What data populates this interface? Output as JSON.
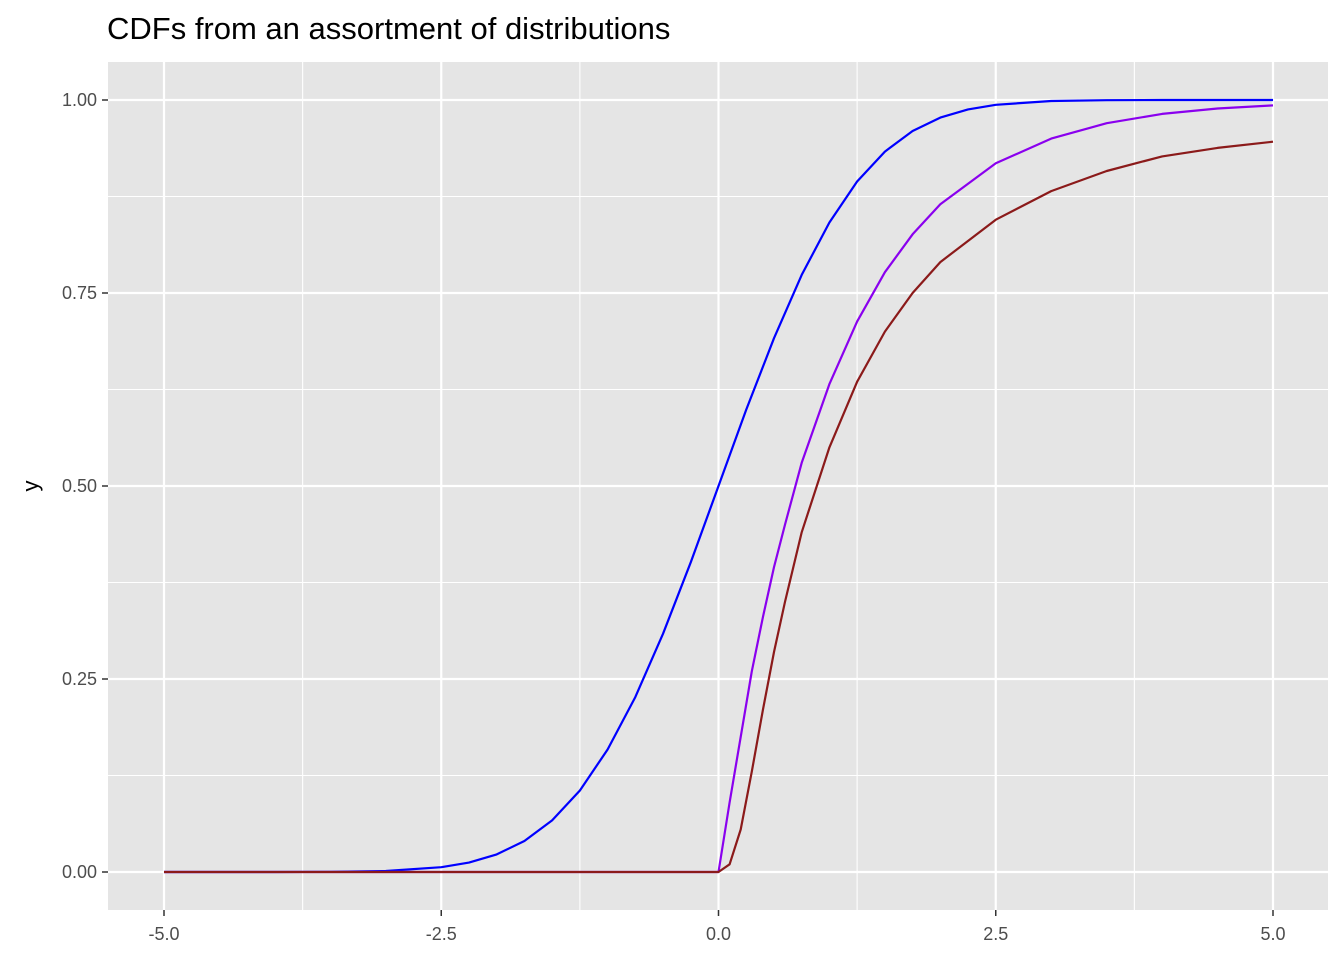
{
  "chart_data": {
    "type": "line",
    "title": "CDFs from an assortment of distributions",
    "xlabel": "",
    "ylabel": "y",
    "xlim": [
      -5.0,
      5.0
    ],
    "ylim": [
      0.0,
      1.0
    ],
    "x_ticks": [
      "-5.0",
      "-2.5",
      "0.0",
      "2.5",
      "5.0"
    ],
    "y_ticks": [
      "0.00",
      "0.25",
      "0.50",
      "0.75",
      "1.00"
    ],
    "grid": true,
    "legend": "none",
    "colors": {
      "panel": "#e5e5e5",
      "grid": "#ffffff"
    },
    "series": [
      {
        "color": "#0000ff",
        "x": [
          -5.0,
          -4.0,
          -3.5,
          -3.0,
          -2.5,
          -2.25,
          -2.0,
          -1.75,
          -1.5,
          -1.25,
          -1.0,
          -0.75,
          -0.5,
          -0.25,
          0.0,
          0.25,
          0.5,
          0.75,
          1.0,
          1.25,
          1.5,
          1.75,
          2.0,
          2.25,
          2.5,
          3.0,
          3.5,
          4.0,
          5.0
        ],
        "values": [
          0.0,
          0.0,
          0.0002,
          0.0013,
          0.0062,
          0.0122,
          0.0228,
          0.0401,
          0.0668,
          0.1056,
          0.1587,
          0.2266,
          0.3085,
          0.4013,
          0.5,
          0.5987,
          0.6915,
          0.7734,
          0.8413,
          0.8944,
          0.9332,
          0.9599,
          0.9772,
          0.9878,
          0.9938,
          0.9987,
          0.9998,
          1.0,
          1.0
        ]
      },
      {
        "color": "#8a00ee",
        "x": [
          -5.0,
          0.0,
          0.1,
          0.2,
          0.3,
          0.4,
          0.5,
          0.6,
          0.75,
          1.0,
          1.25,
          1.5,
          1.75,
          2.0,
          2.5,
          3.0,
          3.5,
          4.0,
          4.5,
          5.0
        ],
        "values": [
          0.0,
          0.0,
          0.09,
          0.175,
          0.26,
          0.33,
          0.395,
          0.45,
          0.53,
          0.632,
          0.713,
          0.777,
          0.826,
          0.865,
          0.918,
          0.95,
          0.97,
          0.982,
          0.989,
          0.993
        ]
      },
      {
        "color": "#8b1a1a",
        "x": [
          -5.0,
          0.0,
          0.1,
          0.2,
          0.3,
          0.4,
          0.5,
          0.6,
          0.75,
          1.0,
          1.25,
          1.5,
          1.75,
          2.0,
          2.5,
          3.0,
          3.5,
          4.0,
          4.5,
          5.0
        ],
        "values": [
          0.0,
          0.0,
          0.01,
          0.055,
          0.13,
          0.21,
          0.285,
          0.35,
          0.44,
          0.55,
          0.635,
          0.7,
          0.75,
          0.79,
          0.845,
          0.882,
          0.908,
          0.927,
          0.938,
          0.946
        ]
      }
    ]
  }
}
